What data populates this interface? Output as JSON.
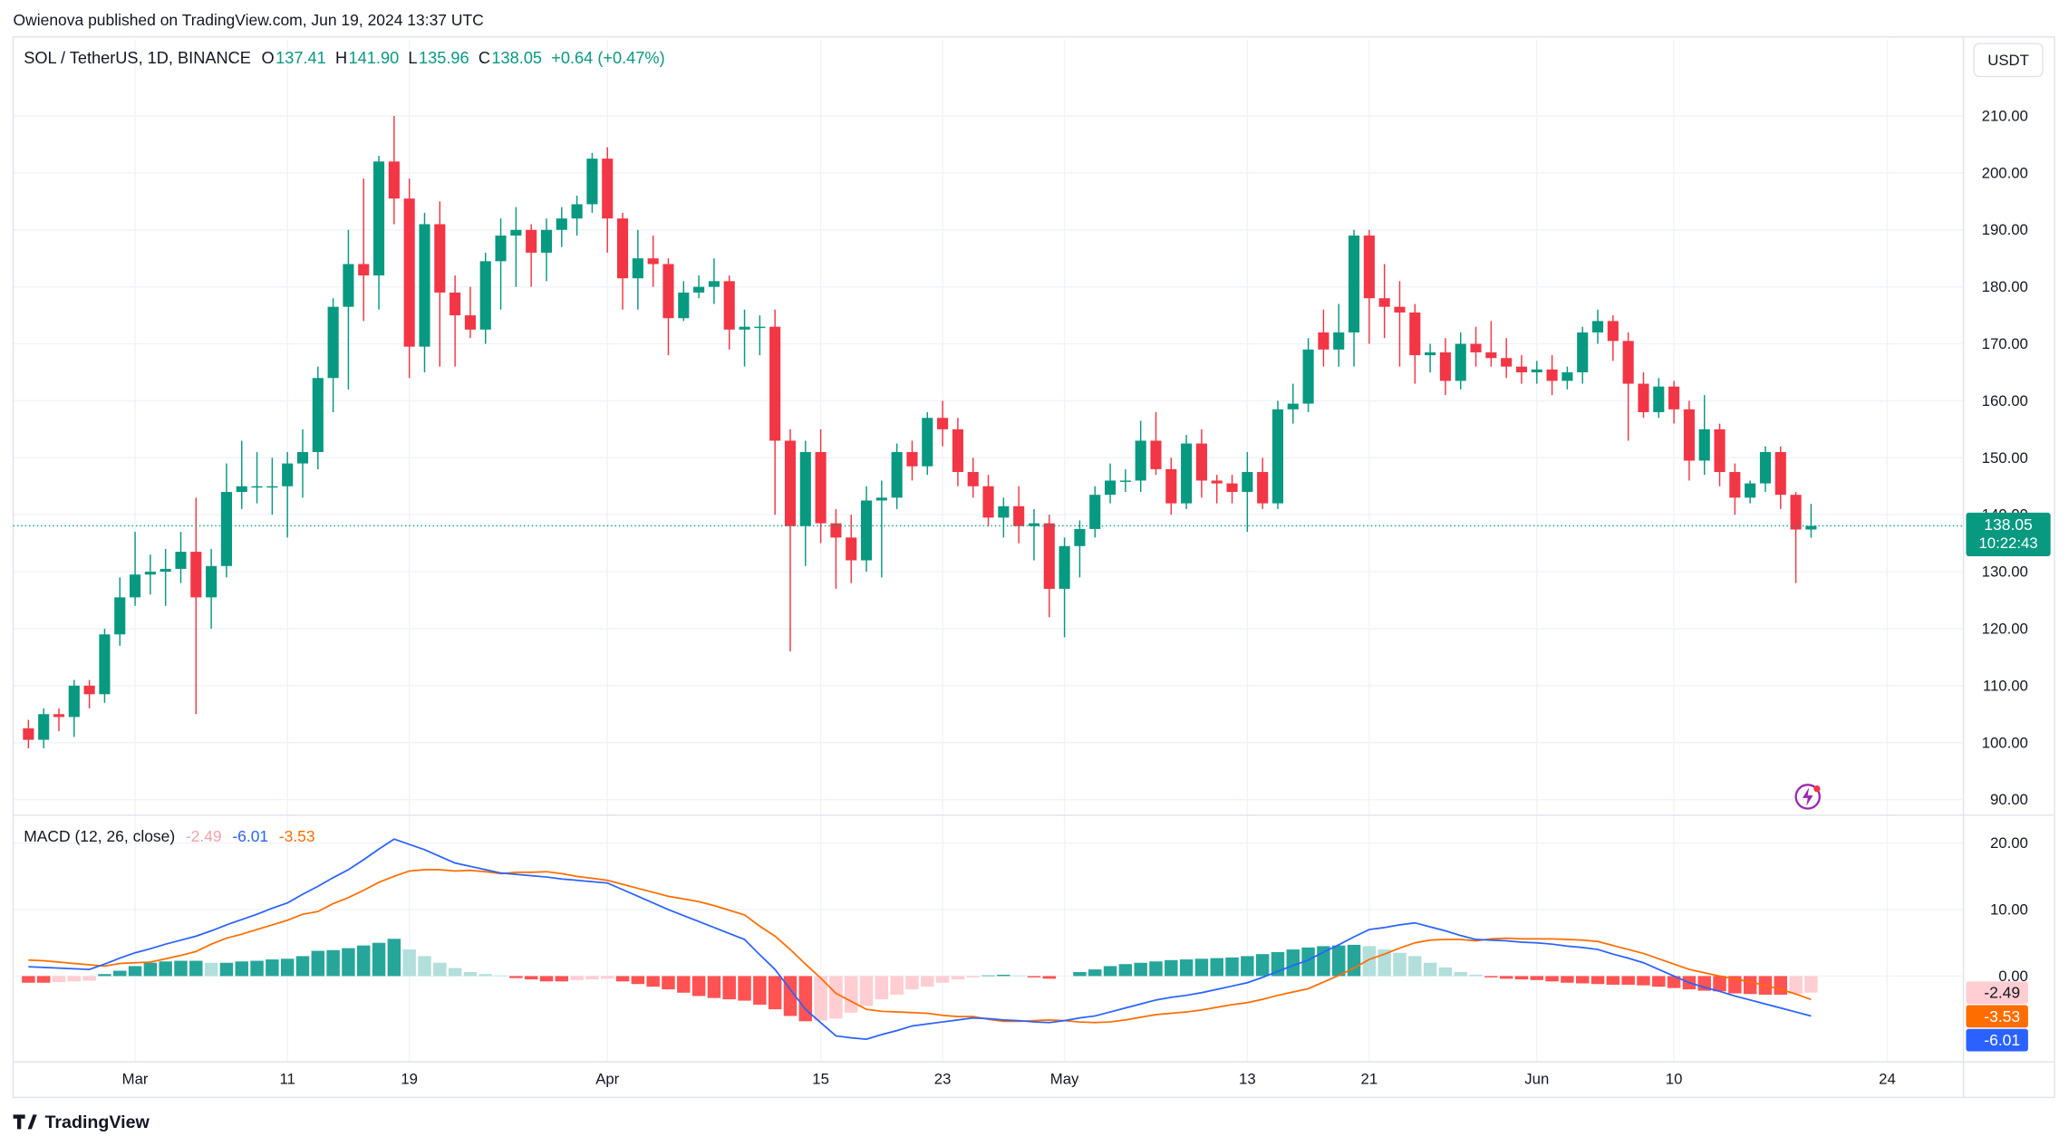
{
  "header": "Owienova published on TradingView.com, Jun 19, 2024 13:37 UTC",
  "footer": "TradingView",
  "chart_data": [
    {
      "type": "candlestick",
      "title": "SOL / TetherUS, 1D, BINANCE",
      "legend_values": [
        {
          "label": "O",
          "value": "137.41"
        },
        {
          "label": "H",
          "value": "141.90"
        },
        {
          "label": "L",
          "value": "135.96"
        },
        {
          "label": "C",
          "value": "138.05"
        }
      ],
      "change": "+0.64 (+0.47%)",
      "currency": "USDT",
      "countdown": "10:22:43",
      "up_color": "#089981",
      "down_color": "#f23645",
      "x": [
        "Feb 23",
        "Feb 24",
        "Feb 25",
        "Feb 26",
        "Feb 27",
        "Feb 28",
        "Feb 29",
        "Mar 1",
        "Mar 2",
        "Mar 3",
        "Mar 4",
        "Mar 5",
        "Mar 6",
        "Mar 7",
        "Mar 8",
        "Mar 9",
        "Mar 10",
        "Mar 11",
        "Mar 12",
        "Mar 13",
        "Mar 14",
        "Mar 15",
        "Mar 16",
        "Mar 17",
        "Mar 18",
        "Mar 19",
        "Mar 20",
        "Mar 21",
        "Mar 22",
        "Mar 23",
        "Mar 24",
        "Mar 25",
        "Mar 26",
        "Mar 27",
        "Mar 28",
        "Mar 29",
        "Mar 30",
        "Mar 31",
        "Apr 1",
        "Apr 2",
        "Apr 3",
        "Apr 4",
        "Apr 5",
        "Apr 6",
        "Apr 7",
        "Apr 8",
        "Apr 9",
        "Apr 10",
        "Apr 11",
        "Apr 12",
        "Apr 13",
        "Apr 14",
        "Apr 15",
        "Apr 16",
        "Apr 17",
        "Apr 18",
        "Apr 19",
        "Apr 20",
        "Apr 21",
        "Apr 22",
        "Apr 23",
        "Apr 24",
        "Apr 25",
        "Apr 26",
        "Apr 27",
        "Apr 28",
        "Apr 29",
        "Apr 30",
        "May 1",
        "May 2",
        "May 3",
        "May 4",
        "May 5",
        "May 6",
        "May 7",
        "May 8",
        "May 9",
        "May 10",
        "May 11",
        "May 12",
        "May 13",
        "May 14",
        "May 15",
        "May 16",
        "May 17",
        "May 18",
        "May 19",
        "May 20",
        "May 21",
        "May 22",
        "May 23",
        "May 24",
        "May 25",
        "May 26",
        "May 27",
        "May 28",
        "May 29",
        "May 30",
        "May 31",
        "Jun 1",
        "Jun 2",
        "Jun 3",
        "Jun 4",
        "Jun 5",
        "Jun 6",
        "Jun 7",
        "Jun 8",
        "Jun 9",
        "Jun 10",
        "Jun 11",
        "Jun 12",
        "Jun 13",
        "Jun 14",
        "Jun 15",
        "Jun 16",
        "Jun 17",
        "Jun 18",
        "Jun 19"
      ],
      "open": [
        102.5,
        100.5,
        105,
        104.5,
        110,
        108.5,
        119,
        125.5,
        129.5,
        130,
        130.5,
        133.5,
        125.5,
        131,
        144,
        145,
        145,
        145,
        149,
        151,
        164,
        176.5,
        184,
        182,
        202,
        195.5,
        169.5,
        191,
        179,
        175,
        172.5,
        184.5,
        189,
        190,
        186,
        190,
        192,
        194.5,
        202.5,
        192,
        181.5,
        185,
        184,
        174.5,
        179,
        180,
        181,
        172.5,
        173,
        173,
        153,
        138,
        151,
        138.5,
        136,
        132,
        142.5,
        143,
        151,
        148.5,
        157,
        155,
        147.5,
        145,
        139.5,
        141.5,
        138,
        138.5,
        127,
        134.5,
        137.5,
        143.5,
        146,
        146,
        153,
        148,
        142,
        152.5,
        146,
        145.5,
        144,
        147.5,
        142,
        158.5,
        159.5,
        172,
        169,
        172,
        189,
        178,
        176.5,
        175.5,
        168,
        168.5,
        163.5,
        170,
        168.5,
        167.5,
        166,
        165,
        165.5,
        163.5,
        165,
        172,
        174,
        170.5,
        163,
        158,
        162.5,
        158.5,
        149.5,
        155,
        147.5,
        143,
        145.5,
        151,
        143.5,
        137.41
      ],
      "high": [
        104,
        106,
        106,
        111,
        111,
        120,
        129,
        137,
        133,
        134,
        137,
        143,
        134,
        149,
        153,
        151,
        150,
        151,
        155,
        166,
        178,
        190,
        199,
        203,
        210,
        199,
        193,
        195,
        182,
        180,
        186,
        192,
        194,
        191,
        192,
        194,
        196,
        203.5,
        204.5,
        193,
        190,
        189,
        185,
        181,
        182,
        185,
        182,
        176,
        175,
        176,
        155,
        153,
        155,
        141,
        140,
        145,
        146,
        152.5,
        153,
        158,
        160,
        157,
        150,
        147,
        143,
        145,
        141,
        140,
        136,
        139,
        145,
        149,
        148,
        156.5,
        158,
        150,
        154,
        155,
        147,
        147,
        151,
        150,
        160,
        163,
        171,
        176,
        177,
        190,
        190,
        184,
        181,
        177,
        170,
        171,
        172,
        173,
        174,
        171,
        168,
        167,
        168,
        166,
        173,
        176,
        175,
        172,
        165,
        164,
        163.5,
        160,
        161,
        156,
        149,
        146,
        152,
        152,
        144,
        141.9
      ],
      "low": [
        99,
        99,
        102,
        101,
        106,
        107,
        117,
        124,
        126,
        124,
        128,
        105,
        120,
        129,
        141,
        142,
        140,
        136,
        143,
        148,
        158,
        162,
        174,
        176,
        191,
        164,
        165,
        166,
        166,
        171,
        170,
        176,
        180,
        180,
        181,
        187,
        189,
        193,
        186,
        176,
        176,
        180,
        168,
        174,
        178,
        177,
        169,
        166,
        168,
        140,
        116,
        131,
        135,
        127,
        128,
        130,
        129,
        141,
        146,
        147,
        152,
        145,
        143,
        138,
        136,
        135,
        132,
        122,
        118.5,
        129,
        136,
        142,
        144,
        144,
        147,
        140,
        141,
        143,
        142,
        142,
        137,
        141,
        141,
        156,
        158,
        166,
        166,
        166,
        170,
        171,
        166,
        163,
        165,
        161,
        162,
        166,
        166,
        164,
        163,
        163,
        161,
        162,
        163,
        170,
        167,
        153,
        157,
        157,
        156,
        146,
        147,
        145,
        140,
        142,
        144,
        141,
        128,
        135.96
      ],
      "close": [
        100.5,
        105,
        104.5,
        110,
        108.5,
        119,
        125.5,
        129.5,
        130,
        130.5,
        133.5,
        125.5,
        131,
        144,
        145,
        145,
        145,
        149,
        151,
        164,
        176.5,
        184,
        182,
        202,
        195.5,
        169.5,
        191,
        179,
        175,
        172.5,
        184.5,
        189,
        190,
        186,
        190,
        192,
        194.5,
        202.5,
        192,
        181.5,
        185,
        184,
        174.5,
        179,
        180,
        181,
        172.5,
        173,
        173,
        153,
        138,
        151,
        138.5,
        136,
        132,
        142.5,
        143,
        151,
        148.5,
        157,
        155,
        147.5,
        145,
        139.5,
        141.5,
        138,
        138.5,
        127,
        134.5,
        137.5,
        143.5,
        146,
        146,
        153,
        148,
        142,
        152.5,
        146,
        145.5,
        144,
        147.5,
        142,
        158.5,
        159.5,
        169,
        169,
        172,
        189,
        178,
        176.5,
        175.5,
        168,
        168.5,
        163.5,
        170,
        168.5,
        167.5,
        166,
        165,
        165.5,
        163.5,
        165,
        172,
        174,
        170.5,
        163,
        158,
        162.5,
        158.5,
        149.5,
        155,
        147.5,
        143,
        145.5,
        151,
        143.5,
        137.41,
        138.05
      ],
      "xlim": [
        "Feb 22",
        "Jun 29"
      ],
      "xticks": [
        {
          "value": "Mar 1",
          "label": "Mar"
        },
        {
          "value": "Mar 11",
          "label": "11"
        },
        {
          "value": "Mar 19",
          "label": "19"
        },
        {
          "value": "Apr 1",
          "label": "Apr"
        },
        {
          "value": "Apr 15",
          "label": "15"
        },
        {
          "value": "Apr 23",
          "label": "23"
        },
        {
          "value": "May 1",
          "label": "May"
        },
        {
          "value": "May 13",
          "label": "13"
        },
        {
          "value": "May 21",
          "label": "21"
        },
        {
          "value": "Jun 1",
          "label": "Jun"
        },
        {
          "value": "Jun 10",
          "label": "10"
        },
        {
          "value": "Jun 24",
          "label": "24"
        }
      ],
      "ylim": [
        87.5,
        223.4
      ],
      "yticks": [
        {
          "value": 90,
          "label": "90.00"
        },
        {
          "value": 100,
          "label": "100.00"
        },
        {
          "value": 110,
          "label": "110.00"
        },
        {
          "value": 120,
          "label": "120.00"
        },
        {
          "value": 130,
          "label": "130.00"
        },
        {
          "value": 140,
          "label": "140.00"
        },
        {
          "value": 150,
          "label": "150.00"
        },
        {
          "value": 160,
          "label": "160.00"
        },
        {
          "value": 170,
          "label": "170.00"
        },
        {
          "value": 180,
          "label": "180.00"
        },
        {
          "value": 190,
          "label": "190.00"
        },
        {
          "value": 200,
          "label": "200.00"
        },
        {
          "value": 210,
          "label": "210.00"
        }
      ],
      "grid": true
    },
    {
      "type": "macd",
      "title": "MACD (12, 26, close)",
      "histogram": {
        "colors": {
          "grow_above": "#26a69a",
          "fall_above": "#b2dfdb",
          "grow_below": "#ffcdd2",
          "fall_below": "#ff5252"
        },
        "label_color": "#f7a1a6",
        "values": [
          -1.0,
          -1.0,
          -0.9,
          -0.8,
          -0.7,
          0.3,
          0.8,
          1.5,
          2.0,
          2.2,
          2.3,
          2.3,
          2.0,
          2.0,
          2.2,
          2.3,
          2.5,
          2.6,
          3.0,
          3.8,
          3.9,
          4.2,
          4.6,
          5.0,
          5.6,
          4.0,
          3.0,
          2.0,
          1.2,
          0.6,
          0.3,
          0.1,
          -0.3,
          -0.5,
          -0.8,
          -0.8,
          -0.6,
          -0.5,
          -0.4,
          -0.8,
          -1.2,
          -1.6,
          -2.0,
          -2.5,
          -3.0,
          -3.3,
          -3.5,
          -3.7,
          -4.3,
          -5.0,
          -6.0,
          -6.8,
          -6.7,
          -6.4,
          -5.5,
          -4.5,
          -3.5,
          -2.8,
          -2.0,
          -1.6,
          -1.0,
          -0.5,
          -0.2,
          0.1,
          0.2,
          0.1,
          -0.2,
          -0.4,
          0.0,
          0.6,
          1.0,
          1.5,
          1.8,
          2.0,
          2.2,
          2.4,
          2.5,
          2.6,
          2.7,
          2.8,
          3.0,
          3.3,
          3.6,
          4.0,
          4.3,
          4.5,
          4.6,
          4.7,
          4.5,
          4.0,
          3.5,
          3.0,
          2.0,
          1.3,
          0.6,
          0.2,
          -0.2,
          -0.4,
          -0.5,
          -0.6,
          -0.8,
          -1.0,
          -1.1,
          -1.2,
          -1.3,
          -1.3,
          -1.4,
          -1.6,
          -1.8,
          -2.0,
          -2.2,
          -2.3,
          -2.6,
          -2.7,
          -2.8,
          -2.8,
          -2.7,
          -2.49
        ]
      },
      "macd": {
        "color": "#2962ff",
        "values": [
          1.4,
          1.3,
          1.2,
          1.1,
          1.0,
          1.8,
          2.7,
          3.5,
          4.1,
          4.8,
          5.4,
          6.0,
          6.8,
          7.7,
          8.5,
          9.3,
          10.2,
          11.0,
          12.3,
          13.5,
          14.8,
          16.0,
          17.5,
          19.1,
          20.6,
          19.8,
          19.0,
          18.0,
          17.0,
          16.5,
          16.0,
          15.5,
          15.3,
          15.1,
          14.9,
          14.6,
          14.4,
          14.2,
          14.0,
          13.0,
          12.0,
          11.0,
          10.0,
          9.1,
          8.2,
          7.3,
          6.4,
          5.5,
          3.2,
          1.0,
          -2.0,
          -5.0,
          -7.0,
          -9.0,
          -9.3,
          -9.5,
          -8.8,
          -8.2,
          -7.5,
          -7.2,
          -6.9,
          -6.6,
          -6.3,
          -6.4,
          -6.6,
          -6.7,
          -6.9,
          -7.0,
          -6.7,
          -6.3,
          -6.0,
          -5.4,
          -4.8,
          -4.2,
          -3.6,
          -3.2,
          -2.9,
          -2.5,
          -2.0,
          -1.5,
          -1.0,
          -0.2,
          0.7,
          1.6,
          2.4,
          3.6,
          4.7,
          5.9,
          7.0,
          7.3,
          7.7,
          8.0,
          7.4,
          6.8,
          6.1,
          5.5,
          5.4,
          5.3,
          5.1,
          5.0,
          4.8,
          4.5,
          4.3,
          4.0,
          3.3,
          2.7,
          2.0,
          1.0,
          0.0,
          -1.0,
          -1.7,
          -2.3,
          -3.0,
          -3.6,
          -4.2,
          -4.8,
          -5.4,
          -6.01
        ]
      },
      "signal": {
        "color": "#ff6d00",
        "values": [
          2.4,
          2.3,
          2.1,
          1.9,
          1.7,
          1.5,
          1.9,
          2.0,
          2.1,
          2.6,
          3.1,
          3.7,
          4.8,
          5.7,
          6.3,
          7.0,
          7.7,
          8.4,
          9.3,
          9.7,
          10.9,
          11.8,
          12.9,
          14.1,
          15.0,
          15.8,
          16.0,
          16.0,
          15.8,
          15.9,
          15.7,
          15.4,
          15.6,
          15.6,
          15.7,
          15.4,
          15.0,
          14.7,
          14.4,
          13.8,
          13.2,
          12.6,
          12.0,
          11.6,
          11.2,
          10.6,
          9.9,
          9.2,
          7.5,
          6.0,
          4.0,
          1.8,
          -0.3,
          -2.6,
          -3.8,
          -5.0,
          -5.3,
          -5.4,
          -5.5,
          -5.6,
          -5.9,
          -6.1,
          -6.1,
          -6.5,
          -6.8,
          -6.8,
          -6.7,
          -6.6,
          -6.7,
          -6.9,
          -7.0,
          -6.9,
          -6.6,
          -6.2,
          -5.8,
          -5.6,
          -5.4,
          -5.1,
          -4.7,
          -4.3,
          -4.0,
          -3.5,
          -2.9,
          -2.4,
          -1.9,
          -0.9,
          0.1,
          1.2,
          2.5,
          3.3,
          4.2,
          5.0,
          5.4,
          5.5,
          5.5,
          5.3,
          5.6,
          5.7,
          5.6,
          5.6,
          5.6,
          5.5,
          5.4,
          5.2,
          4.6,
          4.0,
          3.4,
          2.6,
          1.8,
          1.0,
          0.5,
          0.0,
          -0.4,
          -0.9,
          -1.4,
          -2.0,
          -2.7,
          -3.53
        ]
      },
      "ylim": [
        -12.9,
        24
      ],
      "yticks": [
        {
          "value": 0,
          "label": "0.00"
        },
        {
          "value": 10,
          "label": "10.00"
        },
        {
          "value": 20,
          "label": "20.00"
        }
      ],
      "grid": true
    }
  ]
}
